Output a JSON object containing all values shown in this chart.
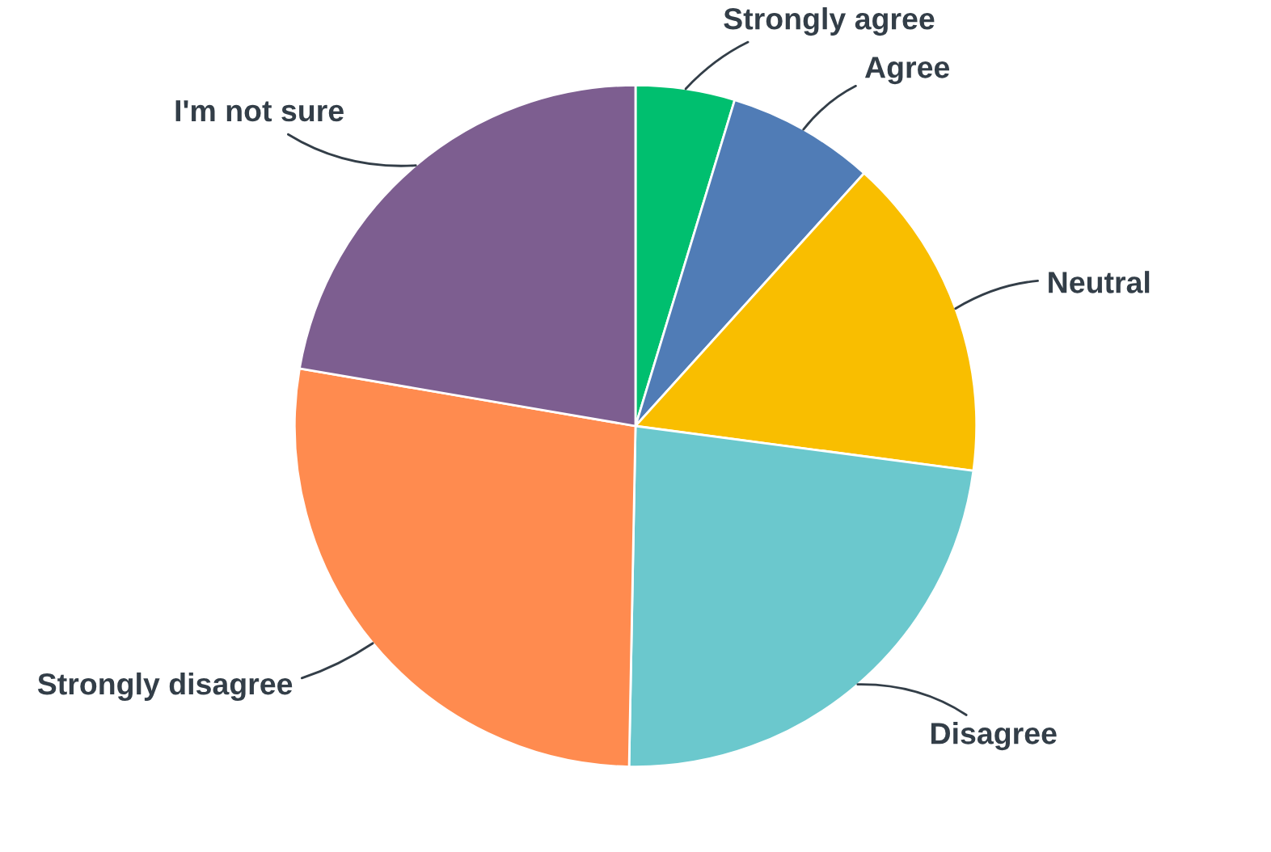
{
  "chart_data": {
    "type": "pie",
    "categories": [
      "Strongly agree",
      "Agree",
      "Neutral",
      "Disagree",
      "Strongly disagree",
      "I'm not sure"
    ],
    "values": [
      4.7,
      7.0,
      15.4,
      23.2,
      27.4,
      22.3
    ],
    "colors": [
      "#00bf6f",
      "#507cb6",
      "#f9be00",
      "#6bc8cd",
      "#ff8b4f",
      "#7d5e90"
    ]
  }
}
